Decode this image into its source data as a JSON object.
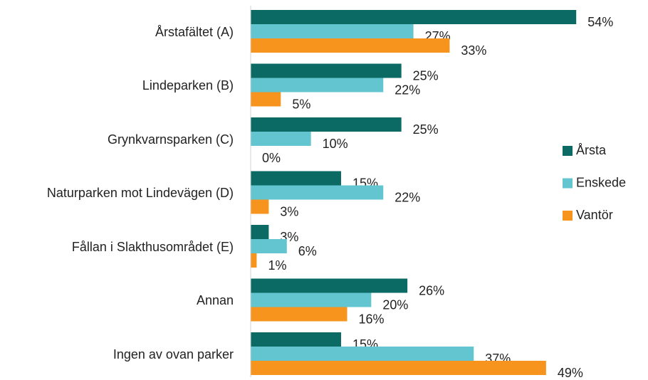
{
  "chart_data": {
    "type": "bar",
    "orientation": "horizontal",
    "categories": [
      "Årstafältet (A)",
      "Lindeparken (B)",
      "Grynkvarnsparken (C)",
      "Naturparken mot Lindevägen (D)",
      "Fållan i Slakthusområdet (E)",
      "Annan",
      "Ingen av ovan parker"
    ],
    "series": [
      {
        "name": "Årsta",
        "color": "#0b6b64",
        "values": [
          54,
          25,
          25,
          15,
          3,
          26,
          15
        ],
        "value_labels": [
          "54%",
          "25%",
          "25%",
          "15%",
          "3%",
          "26%",
          "15%"
        ]
      },
      {
        "name": "Enskede",
        "color": "#63c5cf",
        "values": [
          27,
          22,
          10,
          22,
          6,
          20,
          37
        ],
        "value_labels": [
          "27%",
          "22%",
          "10%",
          "22%",
          "6%",
          "20%",
          "37%"
        ]
      },
      {
        "name": "Vantör",
        "color": "#f7941d",
        "values": [
          33,
          5,
          0,
          3,
          1,
          16,
          49
        ],
        "value_labels": [
          "33%",
          "5%",
          "0%",
          "3%",
          "1%",
          "16%",
          "49%"
        ]
      }
    ],
    "xlim": [
      0,
      60
    ],
    "legend": "right"
  }
}
